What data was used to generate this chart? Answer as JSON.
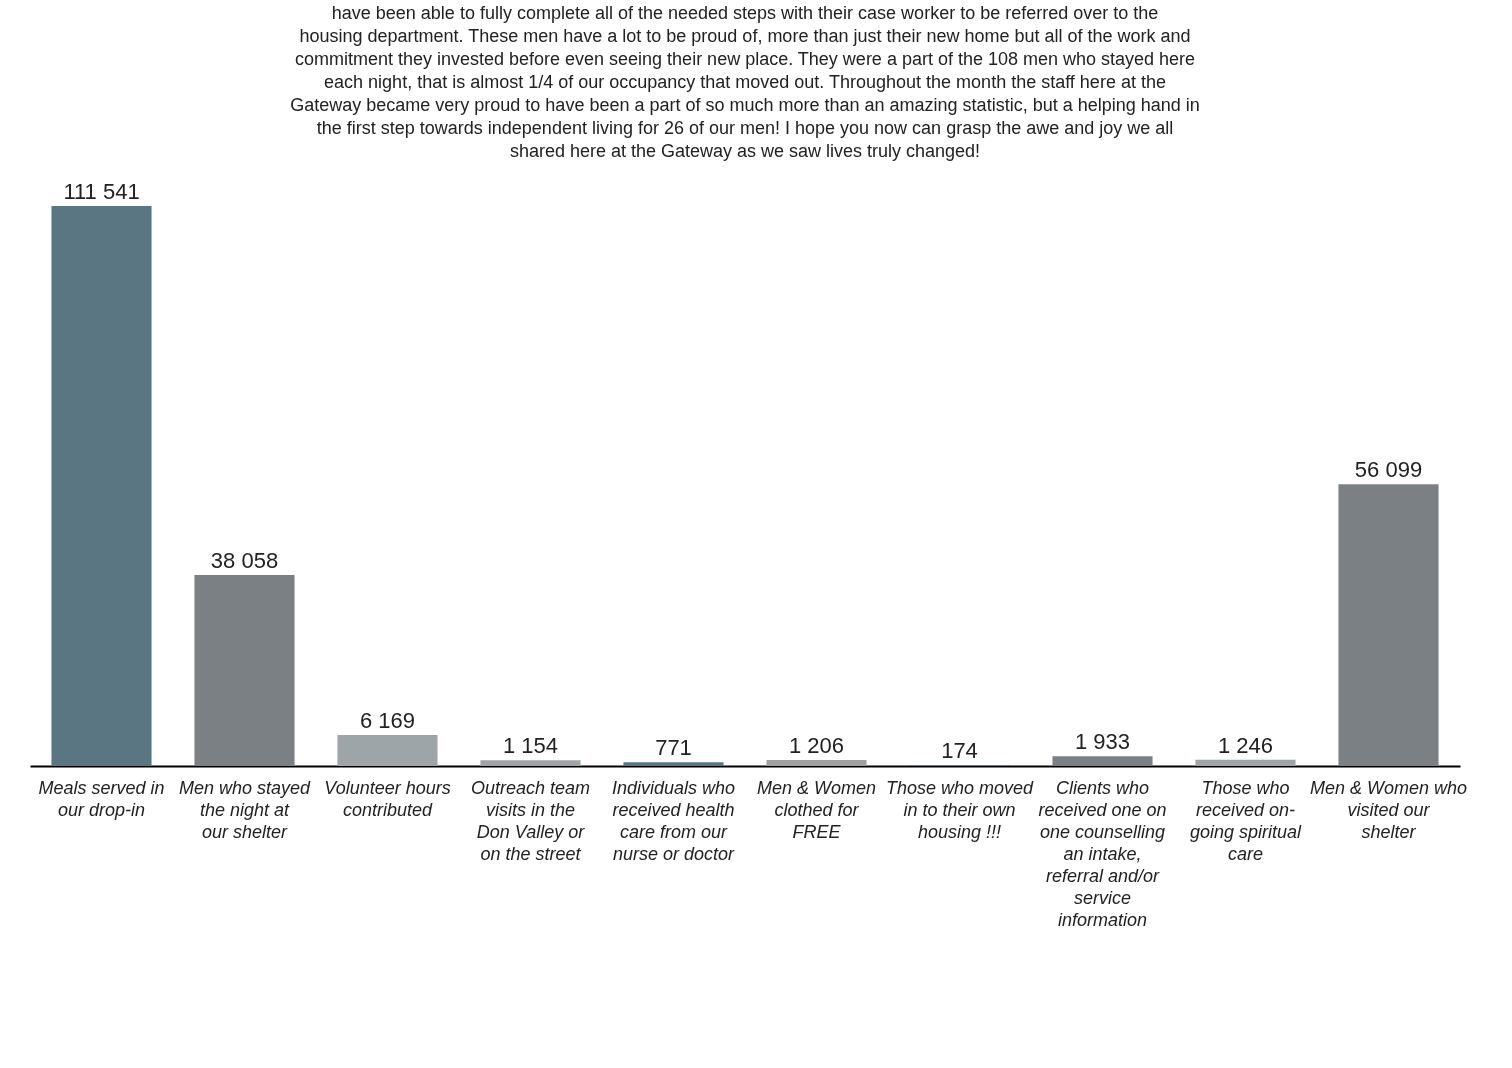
{
  "chart_data": {
    "type": "bar",
    "categories": [
      "Meals served in our drop-in",
      "Men who stayed the night at our shelter",
      "Volunteer hours contributed",
      "Outreach team visits in the Don Valley or on the street",
      "Individuals who received health care from our nurse or doctor",
      "Men & Women clothed for FREE",
      "Those who moved in to their own housing !!!",
      "Clients who received one on one counselling an intake, referral and/or service information",
      "Those who received on-going spiritual care",
      "Men & Women who visited our shelter"
    ],
    "values": [
      111541,
      38058,
      6169,
      1154,
      771,
      1206,
      174,
      1933,
      1246,
      56099
    ],
    "value_labels": [
      "111 541",
      "38 058",
      "6 169",
      "1 154",
      "771",
      "1 206",
      "174",
      "1 933",
      "1 246",
      "56 099"
    ],
    "colors": [
      "#5b7683",
      "#7a8084",
      "#9ea5a8",
      "#9ea5a8",
      "#5b7683",
      "#a0a0a2",
      "#5b7683",
      "#7a8084",
      "#9ea5a8",
      "#7a8084"
    ],
    "annotations": [
      "have been able to fully complete all of the needed steps with their case worker to be referred over to the housing department. These men have a lot to be proud of, more than just their new home but all of the work and commitment they invested before even seeing their new place. They were a part of the 108 men who stayed here each night, that is almost 1/4 of our occupancy that moved out. Throughout the month the staff here at the Gateway became very proud to have been a part of so much more than an amazing statistic, but a helping hand in the first step towards independent living for 26 of our men! I hope you now can grasp the awe and joy we all shared here at the Gateway as we saw lives truly changed!"
    ],
    "data_labels": false
  }
}
